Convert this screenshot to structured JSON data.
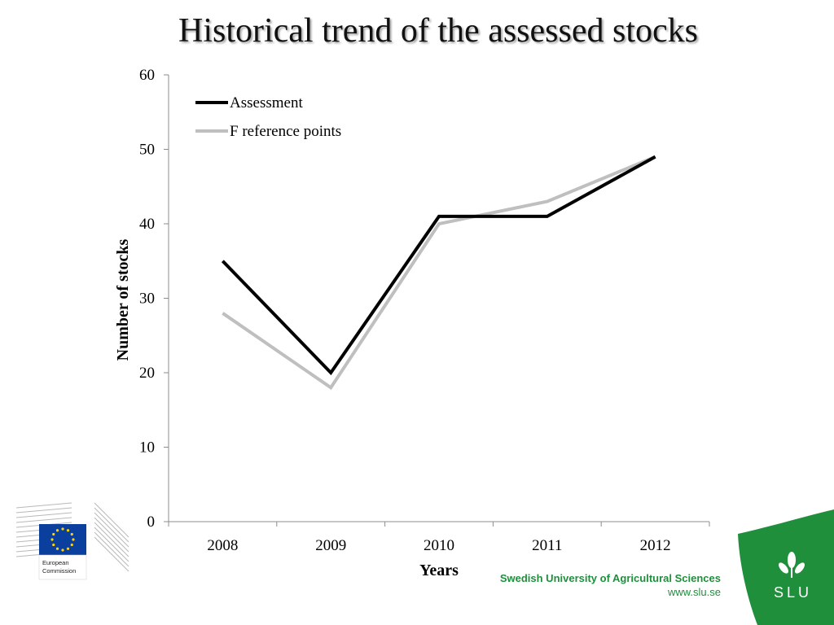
{
  "slide": {
    "title": "Historical trend of the assessed stocks"
  },
  "chart_data": {
    "type": "line",
    "title": "",
    "xlabel": "Years",
    "ylabel": "Number of stocks",
    "categories": [
      "2008",
      "2009",
      "2010",
      "2011",
      "2012"
    ],
    "ylim": [
      0,
      60
    ],
    "yticks": [
      0,
      10,
      20,
      30,
      40,
      50,
      60
    ],
    "grid": false,
    "legend_position": "top-left",
    "series": [
      {
        "name": "Assessment",
        "values": [
          35,
          20,
          41,
          41,
          49
        ],
        "color": "#000000"
      },
      {
        "name": "F reference points",
        "values": [
          28,
          18,
          40,
          43,
          49
        ],
        "color": "#bfbfbf"
      }
    ]
  },
  "footer": {
    "institution": "Swedish University of Agricultural Sciences",
    "url": "www.slu.se",
    "ec_logo_text_line1": "European",
    "ec_logo_text_line2": "Commission",
    "slu_logo_text": "SLU",
    "slu_color": "#1f8f3c",
    "eu_flag_color": "#0b3f9e",
    "eu_star_color": "#ffd200"
  }
}
